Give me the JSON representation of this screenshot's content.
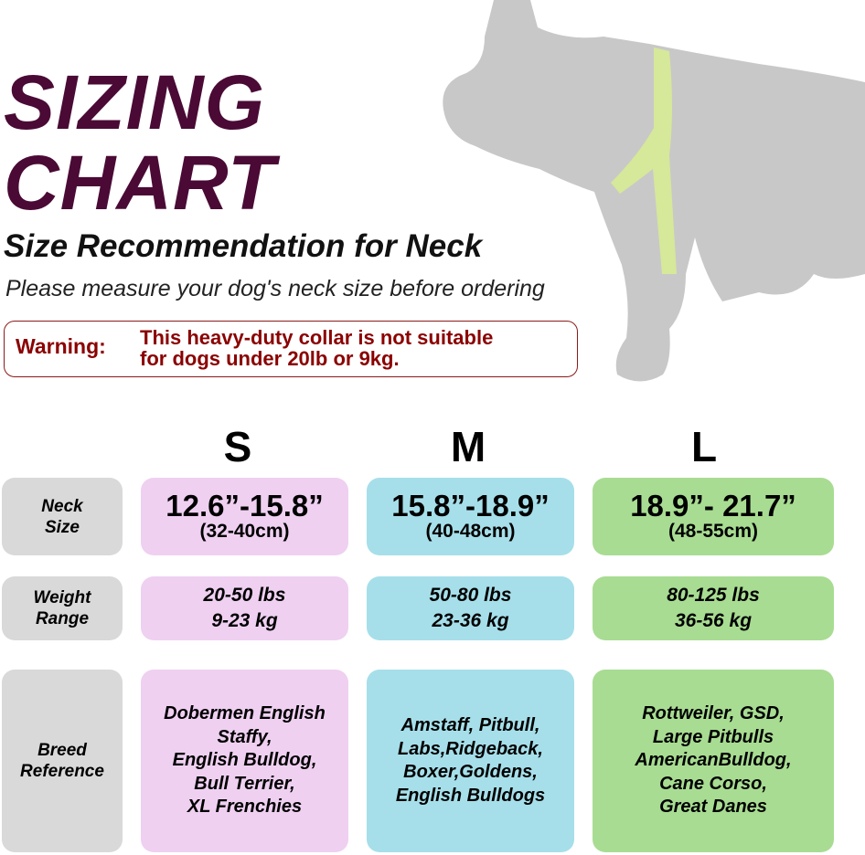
{
  "title_line1": "SIZING",
  "title_line2": "CHART",
  "subtitle": "Size Recommendation for Neck",
  "instruction": "Please measure your dog's neck size before ordering",
  "warning": {
    "label": "Warning:",
    "line1": "This heavy-duty collar is not suitable",
    "line2": "for dogs under 20lb or 9kg.",
    "color": "#8b0000"
  },
  "row_labels": {
    "neck": [
      "Neck",
      "Size"
    ],
    "weight": [
      "Weight",
      "Range"
    ],
    "breed": [
      "Breed",
      "Reference"
    ]
  },
  "sizes": [
    {
      "name": "S",
      "color": "#efd0f1",
      "neck_in": "12.6”-15.8”",
      "neck_cm": "(32-40cm)",
      "weight_lbs": "20-50 lbs",
      "weight_kg": "9-23 kg",
      "breeds": [
        "Dobermen English",
        "Staffy,",
        "English Bulldog,",
        "Bull Terrier,",
        "XL Frenchies"
      ]
    },
    {
      "name": "M",
      "color": "#a6dfea",
      "neck_in": "15.8”-18.9”",
      "neck_cm": "(40-48cm)",
      "weight_lbs": "50-80 lbs",
      "weight_kg": "23-36 kg",
      "breeds": [
        "Amstaff, Pitbull,",
        "Labs,Ridgeback,",
        "Boxer,Goldens,",
        "English Bulldogs"
      ]
    },
    {
      "name": "L",
      "color": "#a8dc92",
      "neck_in": "18.9”- 21.7”",
      "neck_cm": "(48-55cm)",
      "weight_lbs": "80-125 lbs",
      "weight_kg": "36-56 kg",
      "breeds": [
        "Rottweiler, GSD,",
        "Large Pitbulls",
        "AmericanBulldog,",
        "Cane Corso,",
        "Great Danes"
      ]
    }
  ]
}
